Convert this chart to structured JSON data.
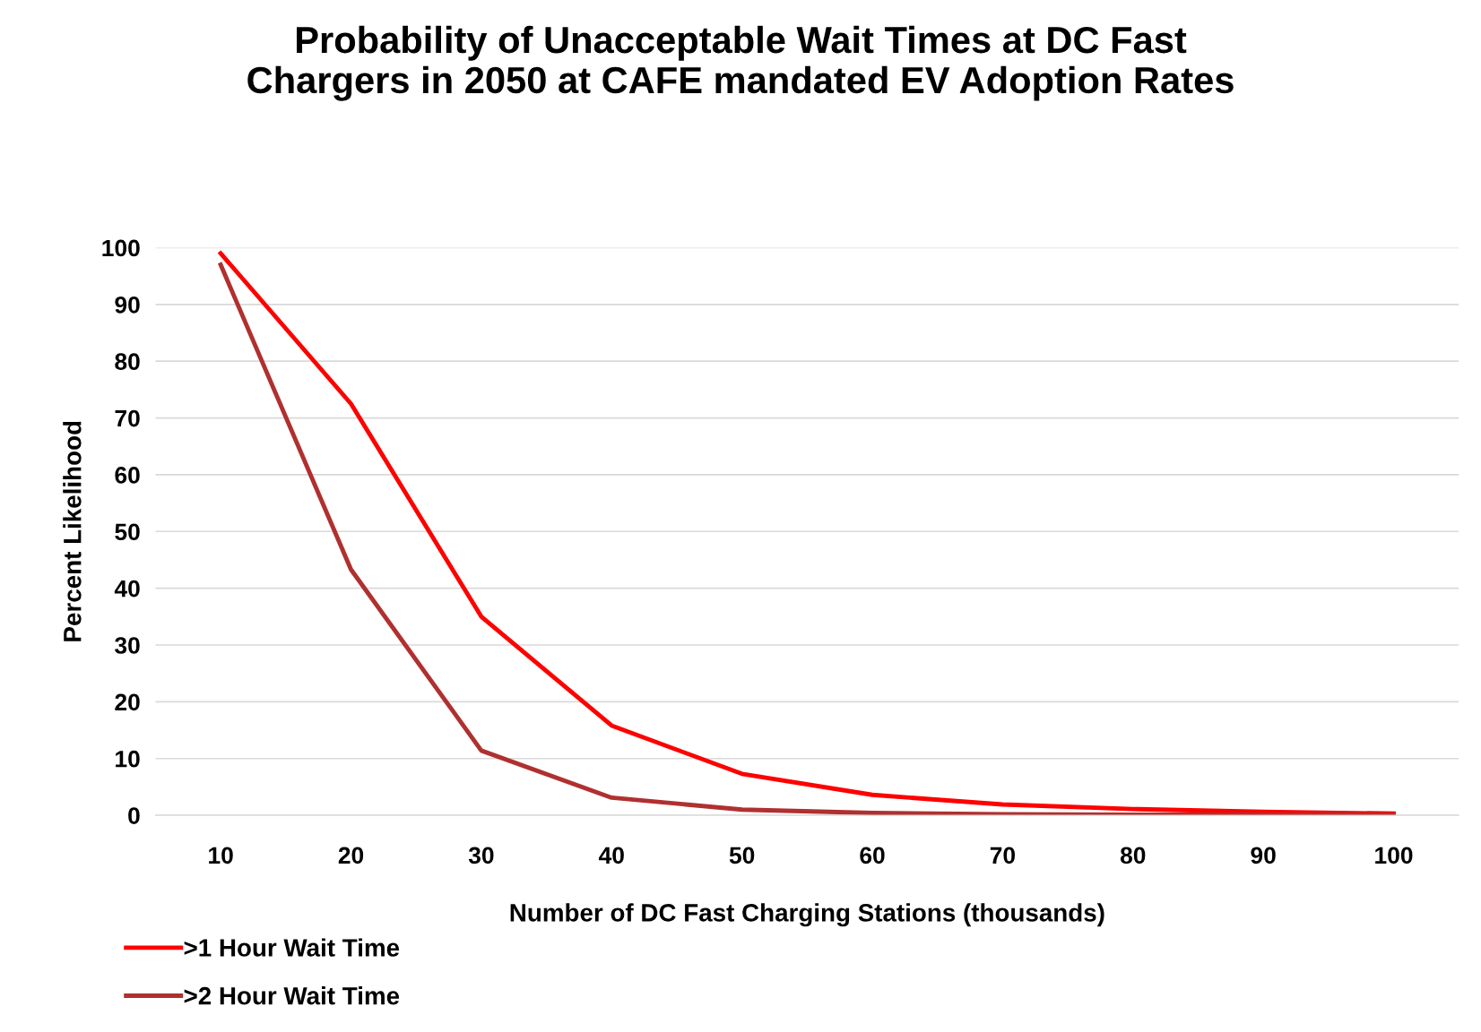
{
  "chart_data": {
    "type": "line",
    "title": "Probability of Unacceptable Wait Times at DC Fast\nChargers in 2050 at CAFE mandated EV Adoption Rates",
    "xlabel": "Number of DC Fast Charging Stations (thousands)",
    "ylabel": "Percent Likelihood",
    "categories": [
      "10",
      "20",
      "30",
      "40",
      "50",
      "60",
      "70",
      "80",
      "90",
      "100"
    ],
    "series": [
      {
        "name": ">1 Hour Wait Time",
        "color": "#ff0000",
        "values": [
          99,
          72.5,
          35,
          15.8,
          7.3,
          3.6,
          1.9,
          1.1,
          0.6,
          0.3
        ]
      },
      {
        "name": ">2 Hour Wait Time",
        "color": "#b03030",
        "values": [
          97,
          43.3,
          11.4,
          3.1,
          1.0,
          0.4,
          0.2,
          0.1,
          0.1,
          0.1
        ]
      }
    ],
    "ylim": [
      0,
      100
    ],
    "yticks": [
      0,
      10,
      20,
      30,
      40,
      50,
      60,
      70,
      80,
      90,
      100
    ],
    "grid": "y",
    "legend": "bottom left",
    "marker": "none",
    "line_style": "solid"
  }
}
